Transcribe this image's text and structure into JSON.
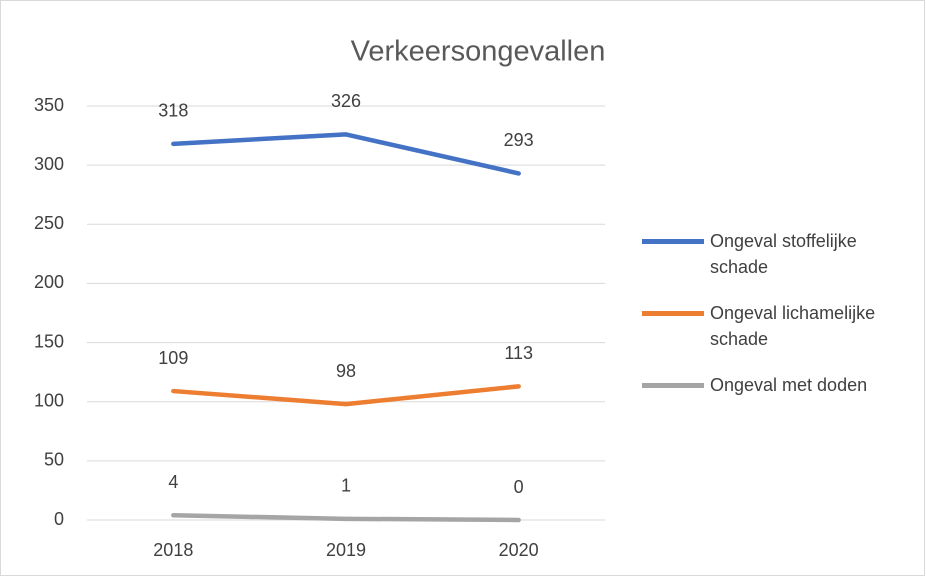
{
  "chart_data": {
    "type": "line",
    "title": "Verkeersongevallen",
    "categories": [
      "2018",
      "2019",
      "2020"
    ],
    "series": [
      {
        "name": "Ongeval stoffelijke schade",
        "color": "#4472c4",
        "values": [
          318,
          326,
          293
        ]
      },
      {
        "name": "Ongeval lichamelijke schade",
        "color": "#ed7d31",
        "values": [
          109,
          98,
          113
        ]
      },
      {
        "name": "Ongeval met doden",
        "color": "#a5a5a5",
        "values": [
          4,
          1,
          0
        ]
      }
    ],
    "ylim": [
      0,
      350
    ],
    "yticks": [
      0,
      50,
      100,
      150,
      200,
      250,
      300,
      350
    ],
    "grid": true,
    "legend": "right"
  }
}
